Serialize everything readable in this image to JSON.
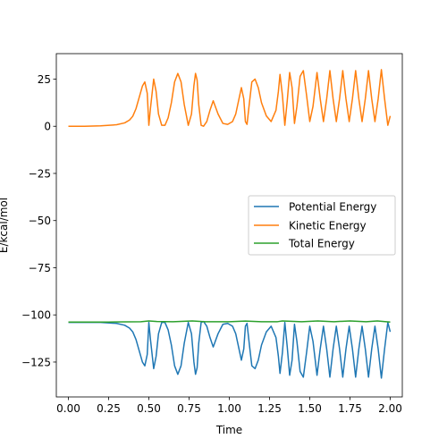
{
  "chart_data": {
    "type": "line",
    "title": "",
    "xlabel": "Time",
    "ylabel": "E/kcal/mol",
    "xlim": [
      -0.075,
      2.075
    ],
    "ylim": [
      -143.5,
      38.5
    ],
    "xticks": [
      0.0,
      0.25,
      0.5,
      0.75,
      1.0,
      1.25,
      1.5,
      1.75,
      2.0
    ],
    "xtick_labels": [
      "0.00",
      "0.25",
      "0.50",
      "0.75",
      "1.00",
      "1.25",
      "1.50",
      "1.75",
      "2.00"
    ],
    "yticks": [
      -125,
      -100,
      -75,
      -50,
      -25,
      0,
      25
    ],
    "ytick_labels": [
      "−125",
      "−100",
      "−75",
      "−50",
      "−25",
      "0",
      "25"
    ],
    "grid": false,
    "legend_position": "center-right",
    "series": [
      {
        "name": "Potential Energy",
        "color": "#1f77b4",
        "x": [
          0.0,
          0.1,
          0.2,
          0.3,
          0.35,
          0.38,
          0.4,
          0.42,
          0.44,
          0.46,
          0.475,
          0.49,
          0.5,
          0.51,
          0.53,
          0.545,
          0.56,
          0.58,
          0.6,
          0.62,
          0.64,
          0.66,
          0.68,
          0.7,
          0.72,
          0.745,
          0.765,
          0.78,
          0.79,
          0.8,
          0.81,
          0.825,
          0.84,
          0.86,
          0.88,
          0.9,
          0.93,
          0.96,
          0.99,
          1.02,
          1.04,
          1.06,
          1.075,
          1.09,
          1.1,
          1.11,
          1.125,
          1.14,
          1.16,
          1.18,
          1.2,
          1.23,
          1.26,
          1.29,
          1.305,
          1.315,
          1.33,
          1.345,
          1.36,
          1.375,
          1.39,
          1.405,
          1.42,
          1.44,
          1.46,
          1.48,
          1.5,
          1.52,
          1.545,
          1.565,
          1.585,
          1.605,
          1.625,
          1.645,
          1.665,
          1.685,
          1.705,
          1.725,
          1.745,
          1.765,
          1.785,
          1.805,
          1.825,
          1.845,
          1.865,
          1.885,
          1.905,
          1.925,
          1.945,
          1.965,
          1.985,
          2.0
        ],
        "y": [
          -104,
          -104,
          -104,
          -104.5,
          -105.5,
          -107,
          -109,
          -113,
          -119,
          -125,
          -127,
          -121,
          -104,
          -113,
          -128.5,
          -122,
          -110,
          -104,
          -104,
          -108,
          -116,
          -127,
          -131.5,
          -127,
          -115,
          -104,
          -110,
          -125,
          -131.5,
          -128,
          -115,
          -104,
          -103.5,
          -106,
          -112,
          -117,
          -110,
          -105,
          -104.5,
          -106,
          -110,
          -118,
          -124,
          -118,
          -106,
          -104.5,
          -116,
          -127,
          -128.5,
          -124,
          -116,
          -109,
          -106,
          -112,
          -122,
          -131,
          -120,
          -104,
          -117,
          -132,
          -124,
          -105,
          -114,
          -130,
          -133,
          -120,
          -106,
          -114,
          -132,
          -118,
          -106,
          -118,
          -133,
          -118,
          -106,
          -118,
          -133,
          -118,
          -106,
          -118,
          -133,
          -118,
          -106,
          -118,
          -133,
          -118,
          -106,
          -118,
          -133.5,
          -118,
          -104,
          -109
        ]
      },
      {
        "name": "Kinetic Energy",
        "color": "#ff7f0e",
        "x": [
          0.0,
          0.1,
          0.2,
          0.3,
          0.35,
          0.38,
          0.4,
          0.42,
          0.44,
          0.46,
          0.475,
          0.49,
          0.5,
          0.51,
          0.53,
          0.545,
          0.56,
          0.58,
          0.6,
          0.62,
          0.64,
          0.66,
          0.68,
          0.7,
          0.72,
          0.745,
          0.765,
          0.78,
          0.79,
          0.8,
          0.81,
          0.825,
          0.84,
          0.86,
          0.88,
          0.9,
          0.93,
          0.96,
          0.99,
          1.02,
          1.04,
          1.06,
          1.075,
          1.09,
          1.1,
          1.11,
          1.125,
          1.14,
          1.16,
          1.18,
          1.2,
          1.23,
          1.26,
          1.29,
          1.305,
          1.315,
          1.33,
          1.345,
          1.36,
          1.375,
          1.39,
          1.405,
          1.42,
          1.44,
          1.46,
          1.48,
          1.5,
          1.52,
          1.545,
          1.565,
          1.585,
          1.605,
          1.625,
          1.645,
          1.665,
          1.685,
          1.705,
          1.725,
          1.745,
          1.765,
          1.785,
          1.805,
          1.825,
          1.845,
          1.865,
          1.885,
          1.905,
          1.925,
          1.945,
          1.965,
          1.985,
          2.0
        ],
        "y": [
          0,
          0,
          0.2,
          0.8,
          1.8,
          3.3,
          5.3,
          9.3,
          15.3,
          21.3,
          23.5,
          17.5,
          0.5,
          9.5,
          25,
          18.5,
          6.5,
          0.5,
          0.5,
          4.5,
          12.5,
          23.5,
          28,
          23.5,
          11.5,
          0.5,
          6.5,
          21.5,
          28,
          24.5,
          11.5,
          0.5,
          0,
          2.5,
          8.5,
          13.5,
          6.5,
          1.5,
          1,
          2.5,
          6.5,
          14.5,
          20.5,
          14.5,
          2.5,
          1,
          12.5,
          23.5,
          25,
          20.5,
          12.5,
          5.5,
          2.5,
          8.5,
          18.5,
          27.5,
          16.5,
          0.5,
          13.5,
          28.5,
          20.5,
          1.5,
          10.5,
          26.5,
          29.5,
          16.5,
          2.5,
          10.5,
          28.5,
          14.5,
          2.5,
          14.5,
          29.5,
          14.5,
          2.5,
          14.5,
          29.5,
          14.5,
          2.5,
          14.5,
          29.5,
          14.5,
          2.5,
          14.5,
          29.5,
          14.5,
          2.5,
          14.5,
          30,
          14.5,
          0.5,
          5.5
        ]
      },
      {
        "name": "Total Energy",
        "color": "#2ca02c",
        "x": [
          0.0,
          0.25,
          0.45,
          0.5,
          0.55,
          0.65,
          0.77,
          0.85,
          1.0,
          1.1,
          1.2,
          1.3,
          1.33,
          1.45,
          1.55,
          1.65,
          1.75,
          1.85,
          1.92,
          2.0
        ],
        "y": [
          -103.8,
          -103.8,
          -103.6,
          -103.2,
          -103.5,
          -103.6,
          -103.2,
          -103.6,
          -103.6,
          -103.3,
          -103.6,
          -103.6,
          -103.2,
          -103.6,
          -103.2,
          -103.6,
          -103.2,
          -103.6,
          -103.2,
          -103.8
        ]
      }
    ]
  }
}
